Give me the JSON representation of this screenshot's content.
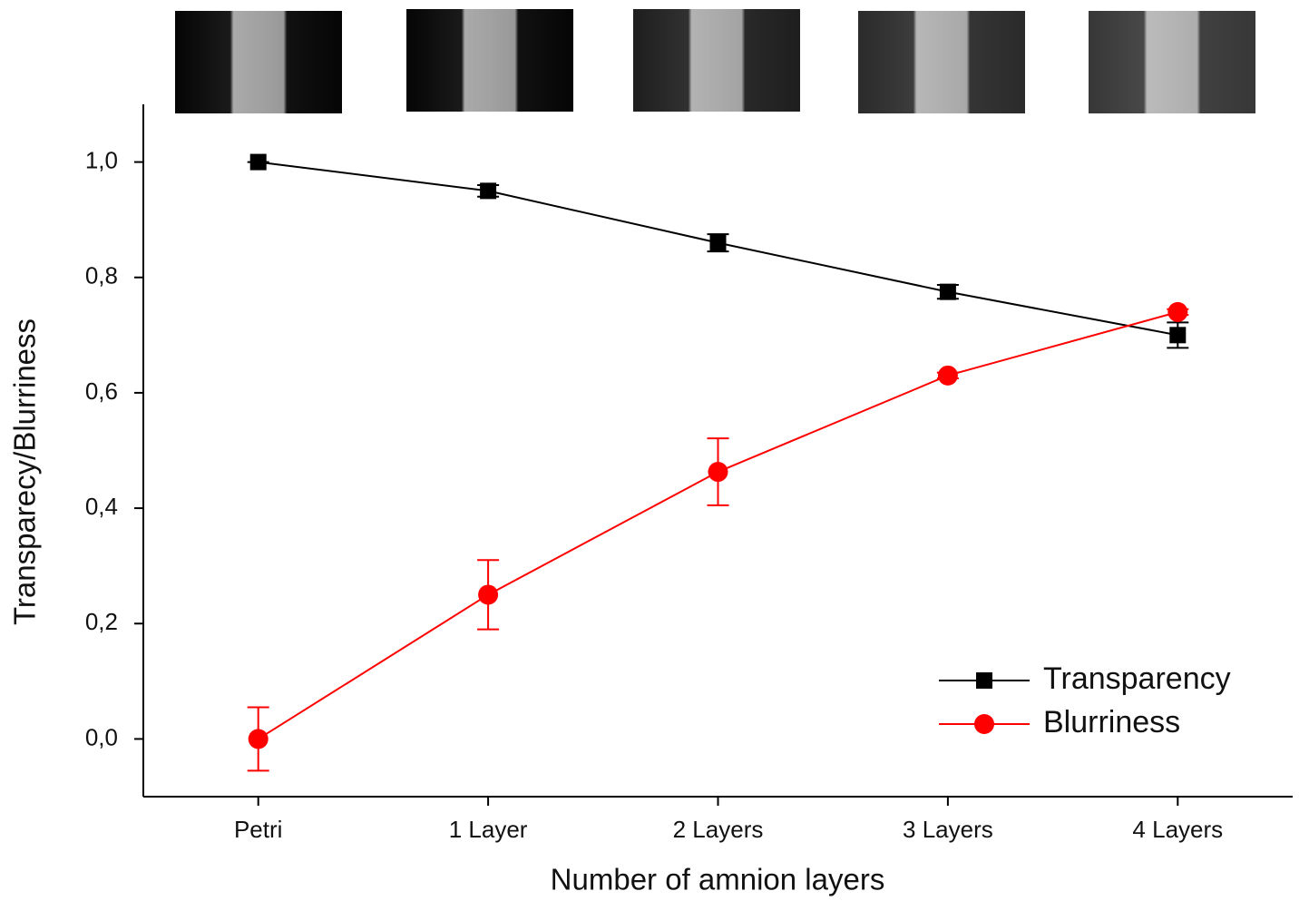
{
  "chart_data": {
    "type": "line",
    "x_label": "Number of amnion layers",
    "y_label": "Transparecy/Blurriness",
    "categories": [
      "Petri",
      "1 Layer",
      "2 Layers",
      "3 Layers",
      "4 Layers"
    ],
    "series": [
      {
        "name": "Transparency",
        "color": "#000000",
        "marker": "square",
        "values": [
          1.0,
          0.95,
          0.86,
          0.775,
          0.7
        ],
        "errors": [
          0.0,
          0.01,
          0.015,
          0.012,
          0.022
        ]
      },
      {
        "name": "Blurriness",
        "color": "#ff0000",
        "marker": "circle",
        "values": [
          0.0,
          0.25,
          0.463,
          0.63,
          0.74
        ],
        "errors": [
          0.055,
          0.06,
          0.058,
          0.005,
          0.005
        ]
      }
    ],
    "ylim": [
      -0.1,
      1.1
    ],
    "yticks": [
      {
        "value": 0,
        "label": "0,0"
      },
      {
        "value": 0.2,
        "label": "0,2"
      },
      {
        "value": 0.4,
        "label": "0,4"
      },
      {
        "value": 0.6,
        "label": "0,6"
      },
      {
        "value": 0.8,
        "label": "0,8"
      },
      {
        "value": 1.0,
        "label": "1,0"
      }
    ],
    "legend": "lower right"
  }
}
